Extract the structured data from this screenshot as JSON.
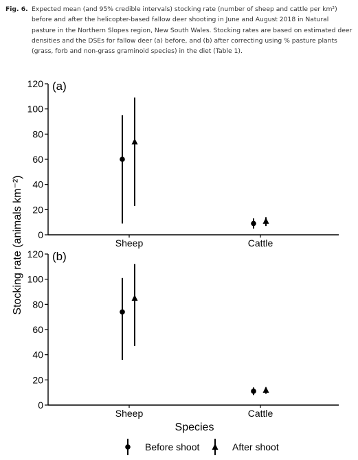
{
  "caption": {
    "label": "Fig. 6.",
    "text": "Expected mean (and 95% credible intervals) stocking rate (number of sheep and cattle per km²) before and after the helicopter-based fallow deer shooting in June and August 2018 in Natural pasture in the Northern Slopes region, New South Wales. Stocking rates are based on estimated deer densities and the DSEs for fallow deer (a) before, and (b) after correcting using % pasture plants (grass, forb and non-grass graminoid species) in the diet (Table 1)."
  },
  "chart_data": {
    "type": "scatter",
    "ylabel": "Stocking rate (animals km⁻²)",
    "xlabel": "Species",
    "categories": [
      "Sheep",
      "Cattle"
    ],
    "ylim": [
      0,
      120
    ],
    "yticks": [
      0,
      20,
      40,
      60,
      80,
      100,
      120
    ],
    "legend": {
      "placement": "bottom",
      "entries": [
        {
          "name": "Before shoot",
          "marker": "circle"
        },
        {
          "name": "After shoot",
          "marker": "triangle"
        }
      ]
    },
    "panels": [
      {
        "label": "(a)",
        "series": [
          {
            "name": "Before shoot",
            "marker": "circle",
            "values": [
              60,
              9
            ],
            "lower": [
              9,
              5
            ],
            "upper": [
              95,
              13
            ]
          },
          {
            "name": "After shoot",
            "marker": "triangle",
            "values": [
              74,
              11
            ],
            "lower": [
              23,
              7
            ],
            "upper": [
              109,
              14
            ]
          }
        ]
      },
      {
        "label": "(b)",
        "series": [
          {
            "name": "Before shoot",
            "marker": "circle",
            "values": [
              74,
              11
            ],
            "lower": [
              36,
              8
            ],
            "upper": [
              101,
              14
            ]
          },
          {
            "name": "After shoot",
            "marker": "triangle",
            "values": [
              85,
              12
            ],
            "lower": [
              47,
              9
            ],
            "upper": [
              112,
              14
            ]
          }
        ]
      }
    ]
  }
}
